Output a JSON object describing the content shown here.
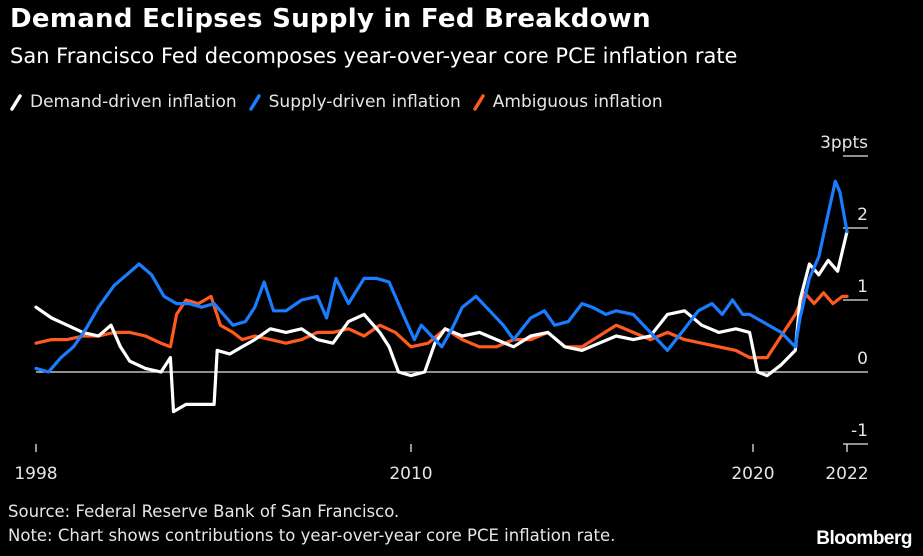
{
  "header": {
    "title": "Demand Eclipses Supply in Fed Breakdown",
    "subtitle": "San Francisco Fed decomposes year-over-year core PCE inflation rate"
  },
  "footer": {
    "source": "Source: Federal Reserve Bank of San Francisco.",
    "note": "Note: Chart shows contributions to year-over-year core PCE inflation rate.",
    "brand": "Bloomberg"
  },
  "chart_data": {
    "type": "line",
    "title": "Demand Eclipses Supply in Fed Breakdown",
    "subtitle": "San Francisco Fed decomposes year-over-year core PCE inflation rate",
    "xlabel": "",
    "ylabel": "ppts",
    "ylim": [
      -1,
      3
    ],
    "xlim": [
      1998,
      2022
    ],
    "grid": false,
    "legend_position": "top-left",
    "x_ticks": [
      {
        "value": 1998,
        "label": "1998"
      },
      {
        "value": 2010,
        "label": "2010"
      },
      {
        "value": 2020,
        "label": "2020"
      },
      {
        "value": 2022,
        "label": "2022"
      }
    ],
    "y_ticks": [
      {
        "value": 3,
        "label": "3ppts"
      },
      {
        "value": 2,
        "label": "2"
      },
      {
        "value": 1,
        "label": "1"
      },
      {
        "value": 0,
        "label": "0"
      },
      {
        "value": -1,
        "label": "-1"
      }
    ],
    "series": [
      {
        "name": "Demand-driven inflation",
        "color": "#ffffff",
        "x": [
          1998.0,
          1998.5,
          1999.0,
          1999.5,
          2000.0,
          2000.4,
          2000.7,
          2001.0,
          2001.5,
          2002.0,
          2002.3,
          2002.4,
          2002.8,
          2003.3,
          2003.7,
          2003.8,
          2004.2,
          2004.6,
          2005.0,
          2005.5,
          2006.0,
          2006.5,
          2007.0,
          2007.5,
          2008.0,
          2008.5,
          2009.0,
          2009.3,
          2009.6,
          2010.0,
          2010.4,
          2010.7,
          2011.0,
          2011.5,
          2012.0,
          2012.5,
          2013.0,
          2013.5,
          2014.0,
          2014.5,
          2015.0,
          2015.5,
          2016.0,
          2016.5,
          2017.0,
          2017.5,
          2018.0,
          2018.5,
          2019.0,
          2019.5,
          2019.9,
          2020.1,
          2020.3,
          2020.6,
          2020.9,
          2021.0,
          2021.2,
          2021.4,
          2021.6,
          2021.8,
          2022.0
        ],
        "values": [
          0.9,
          0.75,
          0.65,
          0.55,
          0.5,
          0.65,
          0.35,
          0.15,
          0.05,
          0.0,
          0.2,
          -0.55,
          -0.45,
          -0.45,
          -0.45,
          0.3,
          0.25,
          0.35,
          0.45,
          0.6,
          0.55,
          0.6,
          0.45,
          0.4,
          0.7,
          0.8,
          0.55,
          0.35,
          0.0,
          -0.05,
          0.0,
          0.4,
          0.6,
          0.5,
          0.55,
          0.45,
          0.35,
          0.5,
          0.55,
          0.35,
          0.3,
          0.4,
          0.5,
          0.45,
          0.5,
          0.8,
          0.85,
          0.65,
          0.55,
          0.6,
          0.55,
          0.0,
          -0.05,
          0.1,
          0.3,
          1.0,
          1.5,
          1.35,
          1.55,
          1.4,
          1.95
        ]
      },
      {
        "name": "Supply-driven inflation",
        "color": "#1a7cff",
        "x": [
          1998.0,
          1998.4,
          1998.8,
          1999.2,
          1999.6,
          2000.0,
          2000.5,
          2000.9,
          2001.3,
          2001.7,
          2002.1,
          2002.5,
          2002.9,
          2003.3,
          2003.7,
          2004.0,
          2004.3,
          2004.7,
          2005.0,
          2005.3,
          2005.6,
          2006.0,
          2006.5,
          2007.0,
          2007.3,
          2007.6,
          2008.0,
          2008.5,
          2008.9,
          2009.3,
          2009.8,
          2010.1,
          2010.3,
          2010.6,
          2010.9,
          2011.2,
          2011.5,
          2011.9,
          2012.3,
          2012.7,
          2013.0,
          2013.5,
          2013.9,
          2014.2,
          2014.6,
          2015.0,
          2015.3,
          2015.7,
          2016.0,
          2016.5,
          2017.0,
          2017.5,
          2018.0,
          2018.4,
          2018.8,
          2019.1,
          2019.4,
          2019.7,
          2019.9,
          2020.2,
          2020.6,
          2020.9,
          2021.0,
          2021.2,
          2021.4,
          2021.6,
          2021.75,
          2021.85,
          2022.0
        ],
        "values": [
          0.05,
          0.0,
          0.2,
          0.35,
          0.6,
          0.9,
          1.2,
          1.35,
          1.5,
          1.35,
          1.05,
          0.95,
          0.95,
          0.9,
          0.95,
          0.8,
          0.65,
          0.7,
          0.9,
          1.25,
          0.85,
          0.85,
          1.0,
          1.05,
          0.75,
          1.3,
          0.95,
          1.3,
          1.3,
          1.25,
          0.75,
          0.45,
          0.65,
          0.5,
          0.35,
          0.6,
          0.9,
          1.05,
          0.85,
          0.65,
          0.45,
          0.75,
          0.85,
          0.65,
          0.7,
          0.95,
          0.9,
          0.8,
          0.85,
          0.8,
          0.55,
          0.3,
          0.6,
          0.85,
          0.95,
          0.8,
          1.0,
          0.8,
          0.8,
          0.7,
          0.55,
          0.35,
          0.75,
          1.3,
          1.6,
          2.2,
          2.65,
          2.5,
          1.95
        ]
      },
      {
        "name": "Ambiguous inflation",
        "color": "#ff5a1f",
        "x": [
          1998.0,
          1998.5,
          1999.0,
          1999.5,
          2000.0,
          2000.5,
          2001.0,
          2001.5,
          2002.0,
          2002.3,
          2002.5,
          2002.8,
          2003.2,
          2003.6,
          2003.9,
          2004.3,
          2004.6,
          2005.0,
          2005.5,
          2006.0,
          2006.5,
          2007.0,
          2007.5,
          2008.0,
          2008.5,
          2009.0,
          2009.5,
          2010.0,
          2010.5,
          2011.0,
          2011.5,
          2012.0,
          2012.5,
          2013.0,
          2013.5,
          2014.0,
          2014.5,
          2015.0,
          2015.5,
          2016.0,
          2016.5,
          2017.0,
          2017.5,
          2018.0,
          2018.5,
          2019.0,
          2019.5,
          2019.9,
          2020.3,
          2020.6,
          2020.9,
          2021.1,
          2021.3,
          2021.5,
          2021.7,
          2021.9,
          2022.0
        ],
        "values": [
          0.4,
          0.45,
          0.45,
          0.5,
          0.5,
          0.55,
          0.55,
          0.5,
          0.4,
          0.35,
          0.8,
          1.0,
          0.95,
          1.05,
          0.65,
          0.55,
          0.45,
          0.5,
          0.45,
          0.4,
          0.45,
          0.55,
          0.55,
          0.6,
          0.5,
          0.65,
          0.55,
          0.35,
          0.4,
          0.6,
          0.45,
          0.35,
          0.35,
          0.45,
          0.45,
          0.55,
          0.35,
          0.35,
          0.5,
          0.65,
          0.55,
          0.45,
          0.55,
          0.45,
          0.4,
          0.35,
          0.3,
          0.2,
          0.2,
          0.5,
          0.8,
          1.1,
          0.95,
          1.1,
          0.95,
          1.05,
          1.05
        ]
      }
    ]
  }
}
